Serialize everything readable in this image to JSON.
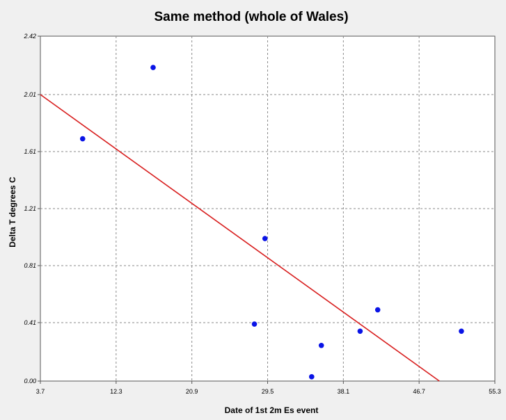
{
  "chart_data": {
    "type": "scatter",
    "title": "Same method (whole of Wales)",
    "xlabel": "Date of 1st 2m Es event",
    "ylabel": "Delta T degrees C",
    "xlim": [
      3.7,
      55.3
    ],
    "ylim": [
      0.0,
      2.42
    ],
    "x_ticks": [
      "3.7",
      "12.3",
      "20.9",
      "29.5",
      "38.1",
      "46.7",
      "55.3"
    ],
    "y_ticks": [
      "0.00",
      "0.41",
      "0.81",
      "1.21",
      "1.61",
      "2.01",
      "2.42"
    ],
    "grid": true,
    "points": [
      {
        "x": 8.5,
        "y": 1.7
      },
      {
        "x": 16.5,
        "y": 2.2
      },
      {
        "x": 28.0,
        "y": 0.4
      },
      {
        "x": 29.2,
        "y": 1.0
      },
      {
        "x": 34.5,
        "y": 0.03
      },
      {
        "x": 35.6,
        "y": 0.25
      },
      {
        "x": 40.0,
        "y": 0.35
      },
      {
        "x": 42.0,
        "y": 0.5
      },
      {
        "x": 51.5,
        "y": 0.35
      }
    ],
    "trendline": {
      "x": [
        3.7,
        49.0
      ],
      "y": [
        2.01,
        0.0
      ]
    },
    "colors": {
      "point": "#0a14e6",
      "trendline": "#d81e1e",
      "grid": "#8a8a8a",
      "plot_background": "#ffffff",
      "page_background": "#f0f0f0"
    }
  }
}
